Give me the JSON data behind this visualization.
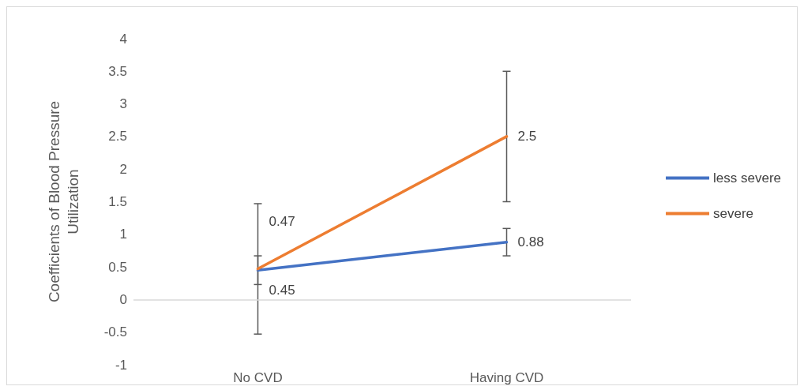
{
  "chart_data": {
    "type": "line",
    "ylabel": "Coefficients of Blood Pressure Utilization",
    "categories": [
      "No CVD",
      "Having CVD"
    ],
    "series": [
      {
        "name": "less severe",
        "color": "#4472c4",
        "values": [
          0.45,
          0.88
        ],
        "errors": [
          0.22,
          0.21
        ]
      },
      {
        "name": "severe",
        "color": "#ed7d31",
        "values": [
          0.47,
          2.5
        ],
        "errors": [
          1,
          1
        ]
      }
    ],
    "ylim": [
      -1,
      4
    ],
    "yticks": [
      -1,
      -0.5,
      0,
      0.5,
      1,
      1.5,
      2,
      2.5,
      3,
      3.5,
      4
    ],
    "grid": false,
    "ref_lines": [
      {
        "axis": "y",
        "value": 0,
        "color": "#d9d9d9"
      }
    ],
    "legend": "right",
    "marker": "none",
    "line_style": "solid",
    "data_labels": true
  }
}
